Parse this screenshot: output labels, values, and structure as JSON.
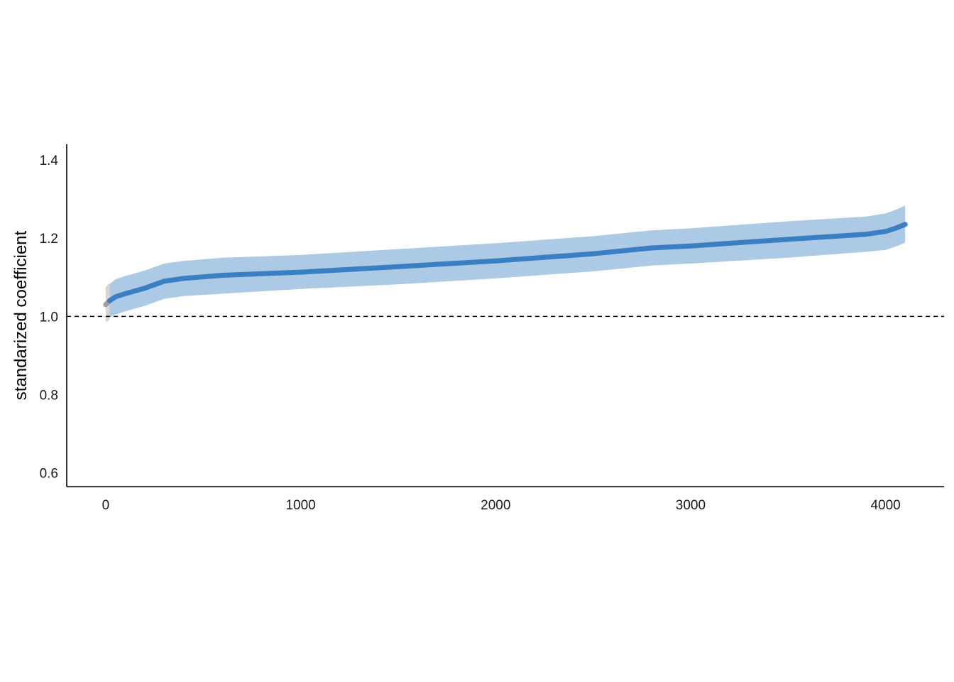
{
  "chart_data": {
    "type": "line",
    "title": "",
    "xlabel": "",
    "ylabel": "standarized coefficient",
    "xlim": [
      -200,
      4300
    ],
    "ylim": [
      0.565,
      1.44
    ],
    "xticks": [
      0,
      1000,
      2000,
      3000,
      4000
    ],
    "xtick_labels": [
      "0",
      "1000",
      "2000",
      "3000",
      "4000"
    ],
    "yticks": [
      0.6,
      0.8,
      1.0,
      1.2,
      1.4
    ],
    "ytick_labels": [
      "0.6",
      "0.8",
      "1.0",
      "1.2",
      "1.4"
    ],
    "reference_line": {
      "y": 1.0,
      "style": "dashed",
      "color": "#000000"
    },
    "grid": false,
    "legend": "none",
    "series": [
      {
        "kind": "nonsignificant",
        "color": "#9e9e9e",
        "band_color": "#d4d4d4",
        "x": [
          0,
          10,
          20
        ],
        "y": [
          1.03,
          1.035,
          1.04
        ],
        "lower": [
          0.985,
          0.988,
          0.992
        ],
        "upper": [
          1.075,
          1.08,
          1.085
        ]
      },
      {
        "kind": "significant",
        "color": "#3a7fc1",
        "band_color": "#a8c6e4",
        "x": [
          20,
          50,
          100,
          200,
          300,
          400,
          600,
          1000,
          1500,
          2000,
          2500,
          2800,
          3000,
          3500,
          3900,
          4000,
          4050,
          4100
        ],
        "y": [
          1.04,
          1.05,
          1.058,
          1.072,
          1.09,
          1.097,
          1.105,
          1.113,
          1.127,
          1.142,
          1.16,
          1.175,
          1.18,
          1.197,
          1.21,
          1.217,
          1.225,
          1.235
        ],
        "lower": [
          0.998,
          1.005,
          1.013,
          1.027,
          1.045,
          1.052,
          1.058,
          1.07,
          1.082,
          1.097,
          1.115,
          1.13,
          1.135,
          1.15,
          1.165,
          1.17,
          1.178,
          1.188
        ],
        "upper": [
          1.082,
          1.095,
          1.103,
          1.117,
          1.135,
          1.142,
          1.15,
          1.157,
          1.172,
          1.187,
          1.205,
          1.22,
          1.225,
          1.243,
          1.255,
          1.263,
          1.272,
          1.283
        ]
      }
    ]
  }
}
